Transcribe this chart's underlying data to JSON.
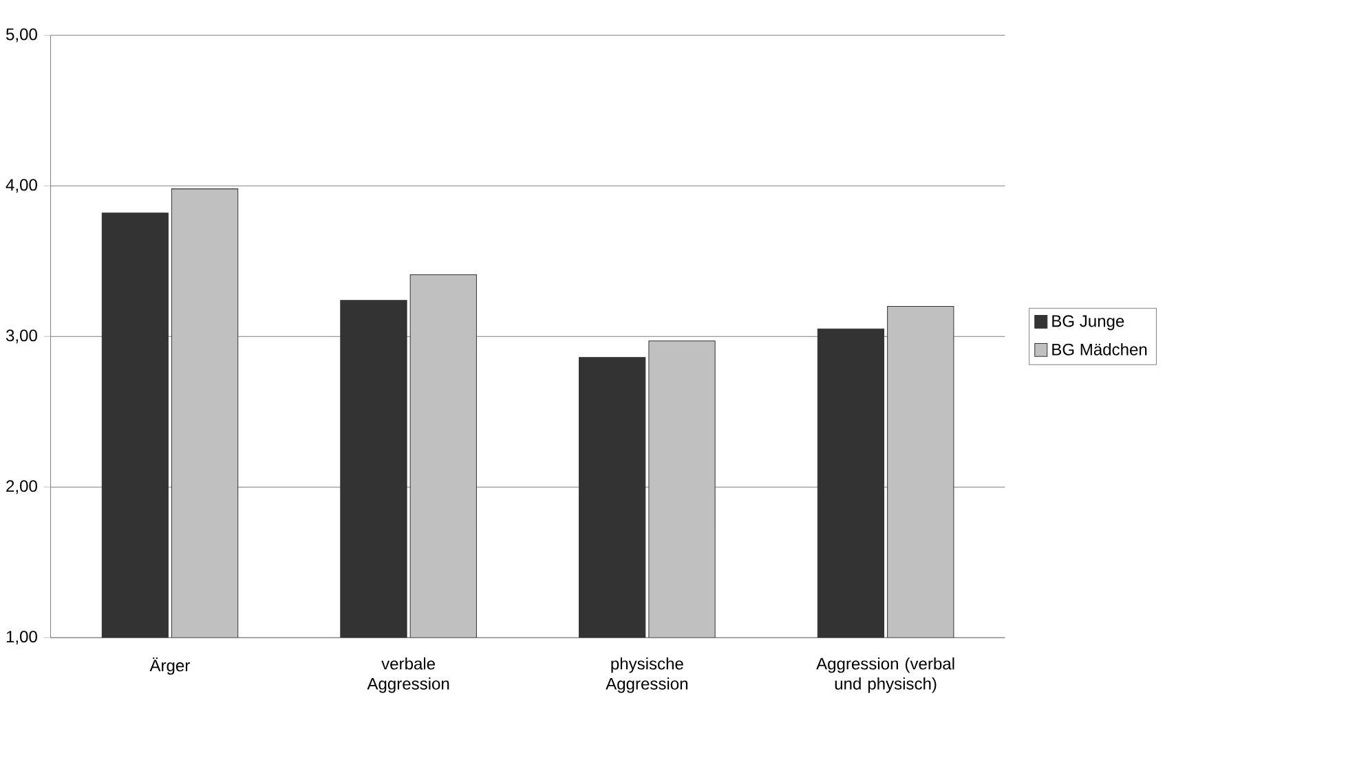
{
  "chart_data": {
    "type": "bar",
    "categories": [
      "Ärger",
      "verbale Aggression",
      "physische Aggression",
      "Aggression (verbal und physisch)"
    ],
    "series": [
      {
        "name": "BG Junge",
        "color": "#333333",
        "values": [
          3.82,
          3.24,
          2.86,
          3.05
        ]
      },
      {
        "name": "BG Mädchen",
        "color": "#c0c0c0",
        "values": [
          3.98,
          3.41,
          2.97,
          3.2
        ]
      }
    ],
    "ylim": [
      1,
      5
    ],
    "yticks": [
      {
        "value": 1,
        "label": "1,00"
      },
      {
        "value": 2,
        "label": "2,00"
      },
      {
        "value": 3,
        "label": "3,00"
      },
      {
        "value": 4,
        "label": "4,00"
      },
      {
        "value": 5,
        "label": "5,00"
      }
    ],
    "grid": "y",
    "legend": "right"
  }
}
